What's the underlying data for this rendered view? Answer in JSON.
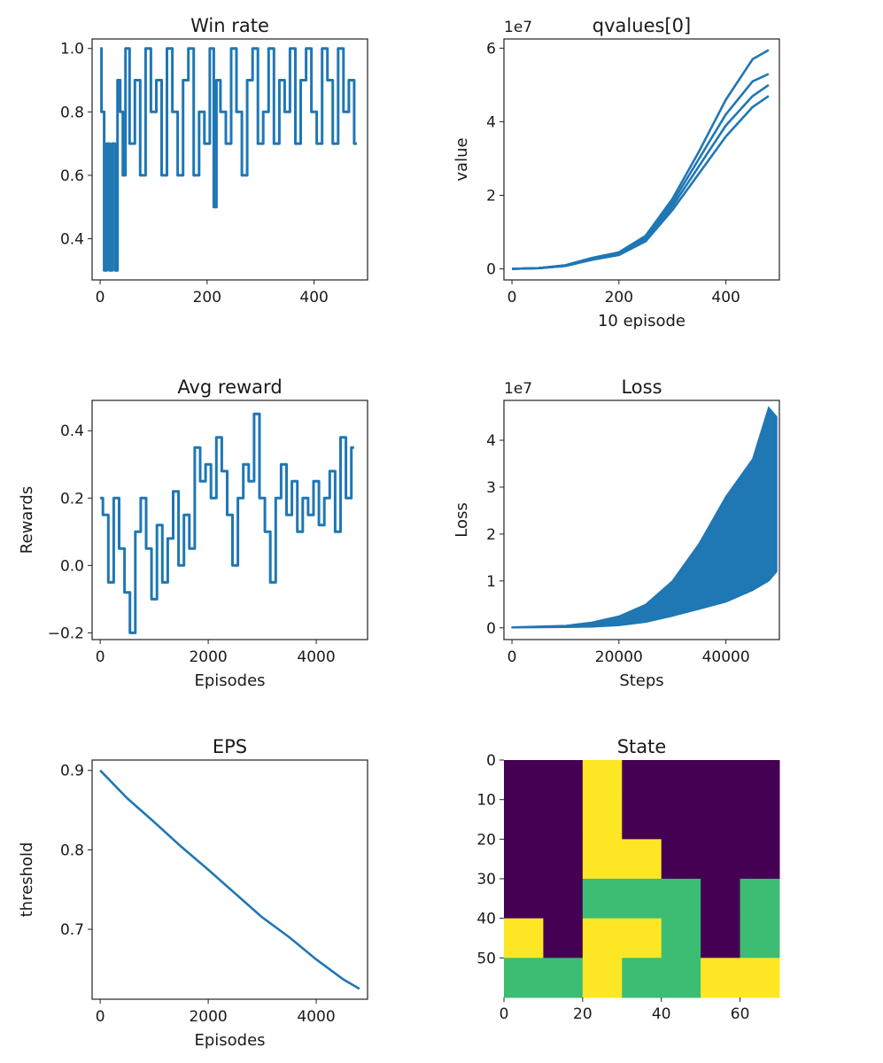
{
  "chart_data": [
    {
      "id": "winrate",
      "type": "line",
      "title": "Win rate",
      "xlabel": "",
      "ylabel": "",
      "xlim": [
        -15,
        500
      ],
      "ylim": [
        0.27,
        1.03
      ],
      "xticks": [
        0,
        200,
        400
      ],
      "yticks": [
        0.4,
        0.6,
        0.8,
        1.0
      ],
      "ytick_labels": [
        "0.4",
        "0.6",
        "0.8",
        "1.0"
      ],
      "color": "#1f77b4",
      "noisy": true,
      "series": [
        {
          "x": [
            0,
            5,
            10,
            15,
            20,
            25,
            30,
            35,
            40,
            45,
            50,
            60,
            70,
            80,
            90,
            100,
            110,
            120,
            130,
            140,
            150,
            160,
            170,
            180,
            190,
            200,
            210,
            215,
            220,
            230,
            240,
            250,
            260,
            270,
            280,
            290,
            300,
            310,
            320,
            330,
            340,
            350,
            360,
            370,
            380,
            390,
            400,
            410,
            420,
            430,
            440,
            450,
            460,
            470,
            480
          ],
          "y": [
            1.0,
            0.8,
            0.3,
            0.7,
            0.3,
            0.7,
            0.3,
            0.9,
            0.8,
            0.6,
            1.0,
            0.7,
            0.9,
            0.6,
            1.0,
            0.8,
            0.9,
            0.6,
            1.0,
            0.8,
            0.6,
            0.9,
            1.0,
            0.6,
            0.8,
            0.7,
            1.0,
            0.5,
            0.9,
            0.8,
            0.7,
            1.0,
            0.8,
            0.6,
            0.9,
            1.0,
            0.7,
            0.8,
            1.0,
            0.7,
            0.9,
            0.8,
            1.0,
            0.7,
            0.9,
            1.0,
            0.8,
            0.7,
            1.0,
            0.9,
            0.7,
            1.0,
            0.8,
            0.9,
            0.7
          ]
        }
      ]
    },
    {
      "id": "qvalues",
      "type": "line",
      "title": "qvalues[0]",
      "xlabel": "10 episode",
      "ylabel": "value",
      "offset_text": "1e7",
      "xlim": [
        -15,
        500
      ],
      "ylim": [
        -0.3,
        6.25
      ],
      "xticks": [
        0,
        200,
        400
      ],
      "yticks": [
        0,
        2,
        4,
        6
      ],
      "ytick_labels": [
        "0",
        "2",
        "4",
        "6"
      ],
      "color": "#1f77b4",
      "noisy": false,
      "series": [
        {
          "x": [
            0,
            50,
            100,
            150,
            200,
            250,
            300,
            350,
            400,
            450,
            480
          ],
          "y": [
            0,
            0.02,
            0.1,
            0.3,
            0.45,
            0.9,
            1.9,
            3.2,
            4.6,
            5.7,
            5.95
          ]
        },
        {
          "x": [
            0,
            50,
            100,
            150,
            200,
            250,
            300,
            350,
            400,
            450,
            480
          ],
          "y": [
            0,
            0.02,
            0.09,
            0.28,
            0.42,
            0.85,
            1.8,
            3.0,
            4.2,
            5.1,
            5.3
          ]
        },
        {
          "x": [
            0,
            50,
            100,
            150,
            200,
            250,
            300,
            350,
            400,
            450,
            480
          ],
          "y": [
            0,
            0.02,
            0.08,
            0.26,
            0.4,
            0.8,
            1.7,
            2.8,
            3.9,
            4.7,
            5.0
          ]
        },
        {
          "x": [
            0,
            50,
            100,
            150,
            200,
            250,
            300,
            350,
            400,
            450,
            480
          ],
          "y": [
            0,
            0.02,
            0.08,
            0.25,
            0.38,
            0.75,
            1.6,
            2.6,
            3.6,
            4.4,
            4.7
          ]
        }
      ]
    },
    {
      "id": "avgreward",
      "type": "line",
      "title": "Avg reward",
      "xlabel": "Episodes",
      "ylabel": "Rewards",
      "xlim": [
        -150,
        4950
      ],
      "ylim": [
        -0.22,
        0.49
      ],
      "xticks": [
        0,
        2000,
        4000
      ],
      "yticks": [
        -0.2,
        0.0,
        0.2,
        0.4
      ],
      "ytick_labels": [
        "−0.2",
        "0.0",
        "0.2",
        "0.4"
      ],
      "color": "#1f77b4",
      "noisy": true,
      "series": [
        {
          "x": [
            0,
            100,
            200,
            300,
            400,
            500,
            600,
            700,
            800,
            900,
            1000,
            1100,
            1200,
            1300,
            1400,
            1500,
            1600,
            1700,
            1800,
            1900,
            2000,
            2100,
            2200,
            2300,
            2400,
            2500,
            2600,
            2700,
            2800,
            2900,
            3000,
            3100,
            3200,
            3300,
            3400,
            3500,
            3600,
            3700,
            3800,
            3900,
            4000,
            4100,
            4200,
            4300,
            4400,
            4500,
            4600,
            4700
          ],
          "y": [
            0.2,
            0.15,
            -0.05,
            0.2,
            0.05,
            -0.08,
            -0.2,
            0.1,
            0.2,
            0.05,
            -0.1,
            0.12,
            -0.05,
            0.08,
            0.22,
            0.0,
            0.15,
            0.05,
            0.35,
            0.25,
            0.3,
            0.2,
            0.38,
            0.28,
            0.15,
            0.0,
            0.2,
            0.3,
            0.25,
            0.45,
            0.2,
            0.1,
            -0.05,
            0.2,
            0.3,
            0.15,
            0.25,
            0.1,
            0.2,
            0.15,
            0.25,
            0.12,
            0.2,
            0.28,
            0.1,
            0.38,
            0.2,
            0.35
          ]
        }
      ]
    },
    {
      "id": "loss",
      "type": "line",
      "title": "Loss",
      "xlabel": "Steps",
      "ylabel": "Loss",
      "offset_text": "1e7",
      "xlim": [
        -1500,
        50000
      ],
      "ylim": [
        -0.25,
        4.85
      ],
      "xticks": [
        0,
        20000,
        40000
      ],
      "yticks": [
        0,
        1,
        2,
        3,
        4
      ],
      "ytick_labels": [
        "0",
        "1",
        "2",
        "3",
        "4"
      ],
      "color": "#1f77b4",
      "noisy": false,
      "band": {
        "x": [
          0,
          10000,
          15000,
          20000,
          25000,
          30000,
          35000,
          40000,
          45000,
          48000,
          49500
        ],
        "low": [
          0,
          0.01,
          0.02,
          0.05,
          0.12,
          0.25,
          0.4,
          0.55,
          0.8,
          1.0,
          1.2
        ],
        "high": [
          0.02,
          0.05,
          0.12,
          0.25,
          0.5,
          1.0,
          1.8,
          2.8,
          3.6,
          4.7,
          4.5
        ]
      }
    },
    {
      "id": "eps",
      "type": "line",
      "title": "EPS",
      "xlabel": "Episodes",
      "ylabel": "threshold",
      "xlim": [
        -150,
        4950
      ],
      "ylim": [
        0.612,
        0.913
      ],
      "xticks": [
        0,
        2000,
        4000
      ],
      "yticks": [
        0.7,
        0.8,
        0.9
      ],
      "ytick_labels": [
        "0.7",
        "0.8",
        "0.9"
      ],
      "color": "#1f77b4",
      "noisy": false,
      "series": [
        {
          "x": [
            0,
            500,
            1000,
            1500,
            2000,
            2500,
            3000,
            3500,
            4000,
            4500,
            4800
          ],
          "y": [
            0.9,
            0.865,
            0.835,
            0.804,
            0.775,
            0.745,
            0.715,
            0.69,
            0.662,
            0.637,
            0.625
          ]
        }
      ]
    },
    {
      "id": "state",
      "type": "heatmap",
      "title": "State",
      "xlim": [
        0,
        70
      ],
      "ylim": [
        60,
        0
      ],
      "xticks": [
        0,
        20,
        40,
        60
      ],
      "yticks": [
        0,
        10,
        20,
        30,
        40,
        50
      ],
      "cell_size": 10,
      "colormap": {
        "0": "#440154",
        "1": "#3dbc74",
        "2": "#fde725"
      },
      "grid": [
        [
          0,
          0,
          2,
          0,
          0,
          0,
          0
        ],
        [
          0,
          0,
          2,
          0,
          0,
          0,
          0
        ],
        [
          0,
          0,
          2,
          2,
          0,
          0,
          0
        ],
        [
          0,
          0,
          1,
          1,
          1,
          0,
          1
        ],
        [
          2,
          0,
          2,
          2,
          1,
          0,
          1
        ],
        [
          1,
          1,
          2,
          1,
          1,
          2,
          2
        ]
      ]
    }
  ]
}
